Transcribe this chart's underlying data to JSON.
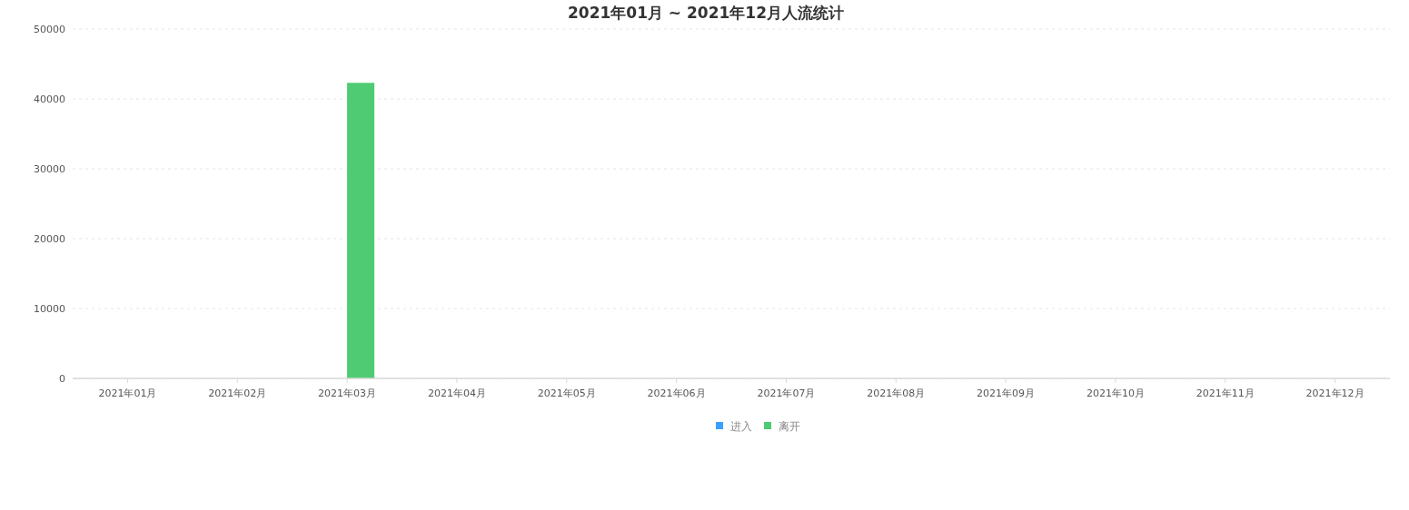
{
  "chart_data": {
    "type": "bar",
    "title": "2021年01月 ~ 2021年12月人流统计",
    "categories": [
      "2021年01月",
      "2021年02月",
      "2021年03月",
      "2021年04月",
      "2021年05月",
      "2021年06月",
      "2021年07月",
      "2021年08月",
      "2021年09月",
      "2021年10月",
      "2021年11月",
      "2021年12月"
    ],
    "series": [
      {
        "name": "进入",
        "color": "#3aa0ff",
        "values": [
          0,
          0,
          0,
          0,
          0,
          0,
          0,
          0,
          0,
          0,
          0,
          0
        ]
      },
      {
        "name": "离开",
        "color": "#4ecb73",
        "values": [
          0,
          0,
          42300,
          0,
          0,
          0,
          0,
          0,
          0,
          0,
          0,
          0
        ]
      }
    ],
    "ylim": [
      0,
      50000
    ],
    "yticks": [
      0,
      10000,
      20000,
      30000,
      40000,
      50000
    ],
    "grid": "y",
    "legend": "bottom"
  }
}
